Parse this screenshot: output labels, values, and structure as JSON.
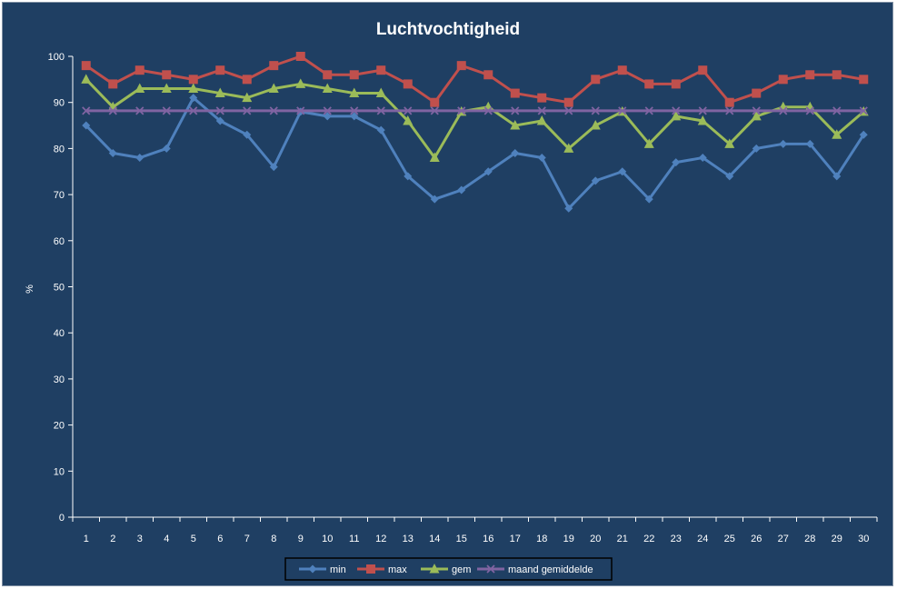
{
  "chart_data": {
    "type": "line",
    "title": "Luchtvochtigheid",
    "xlabel": "",
    "ylabel": "%",
    "ylim": [
      0,
      100
    ],
    "yticks": [
      0,
      10,
      20,
      30,
      40,
      50,
      60,
      70,
      80,
      90,
      100
    ],
    "grid": false,
    "legend_position": "bottom",
    "categories": [
      "1",
      "2",
      "3",
      "4",
      "5",
      "6",
      "7",
      "8",
      "9",
      "10",
      "11",
      "12",
      "13",
      "14",
      "15",
      "16",
      "17",
      "18",
      "19",
      "20",
      "21",
      "22",
      "23",
      "24",
      "25",
      "26",
      "27",
      "28",
      "29",
      "30"
    ],
    "series": [
      {
        "name": "min",
        "color": "#4f81bd",
        "marker": "diamond",
        "values": [
          85,
          79,
          78,
          80,
          91,
          86,
          83,
          76,
          88,
          87,
          87,
          84,
          74,
          69,
          71,
          75,
          79,
          78,
          67,
          73,
          75,
          69,
          77,
          78,
          74,
          80,
          81,
          81,
          74,
          83
        ]
      },
      {
        "name": "max",
        "color": "#c0504d",
        "marker": "square",
        "values": [
          98,
          94,
          97,
          96,
          95,
          97,
          95,
          98,
          100,
          96,
          96,
          97,
          94,
          90,
          98,
          96,
          92,
          91,
          90,
          95,
          97,
          94,
          94,
          97,
          90,
          92,
          95,
          96,
          96,
          95
        ]
      },
      {
        "name": "gem",
        "color": "#9bbb59",
        "marker": "triangle",
        "values": [
          95,
          89,
          93,
          93,
          93,
          92,
          91,
          93,
          94,
          93,
          92,
          92,
          86,
          78,
          88,
          89,
          85,
          86,
          80,
          85,
          88,
          81,
          87,
          86,
          81,
          87,
          89,
          89,
          83,
          88
        ]
      },
      {
        "name": "maand gemiddelde",
        "color": "#8064a2",
        "marker": "x",
        "values": [
          88.2,
          88.2,
          88.2,
          88.2,
          88.2,
          88.2,
          88.2,
          88.2,
          88.2,
          88.2,
          88.2,
          88.2,
          88.2,
          88.2,
          88.2,
          88.2,
          88.2,
          88.2,
          88.2,
          88.2,
          88.2,
          88.2,
          88.2,
          88.2,
          88.2,
          88.2,
          88.2,
          88.2,
          88.2,
          88.2
        ]
      }
    ]
  }
}
